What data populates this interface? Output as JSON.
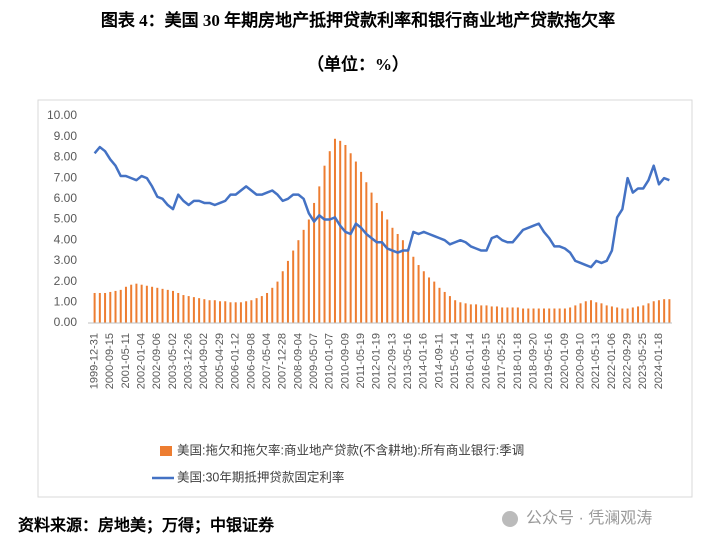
{
  "chart_data": {
    "type": "combo",
    "title": "图表 4：美国 30 年期房地产抵押贷款利率和银行商业地产贷款拖欠率",
    "subtitle": "（单位：%）",
    "categories": [
      "1999-12-31",
      null,
      null,
      "2000-09-15",
      null,
      null,
      "2001-05-11",
      null,
      null,
      "2002-01-04",
      null,
      null,
      "2002-09-06",
      null,
      null,
      "2003-05-02",
      null,
      null,
      "2003-12-26",
      null,
      null,
      "2004-09-02",
      null,
      null,
      "2005-04-29",
      null,
      null,
      "2006-01-12",
      null,
      null,
      "2006-09-08",
      null,
      null,
      "2007-05-04",
      null,
      null,
      "2007-12-28",
      null,
      null,
      "2008-09-04",
      null,
      null,
      "2009-05-07",
      null,
      null,
      "2010-01-07",
      null,
      null,
      "2010-09-09",
      null,
      null,
      "2011-05-19",
      null,
      null,
      "2012-01-19",
      null,
      null,
      "2012-09-13",
      null,
      null,
      "2013-05-16",
      null,
      null,
      "2014-01-16",
      null,
      null,
      "2014-09-11",
      null,
      null,
      "2015-05-14",
      null,
      null,
      "2016-01-14",
      null,
      null,
      "2016-09-15",
      null,
      null,
      "2017-05-25",
      null,
      null,
      "2018-01-18",
      null,
      null,
      "2018-09-20",
      null,
      null,
      "2019-05-16",
      null,
      null,
      "2020-01-09",
      null,
      null,
      "2020-09-10",
      null,
      null,
      "2021-05-13",
      null,
      null,
      "2022-01-06",
      null,
      null,
      "2022-09-29",
      null,
      null,
      "2023-05-25",
      null,
      null,
      "2024-01-18",
      null,
      null
    ],
    "series": [
      {
        "name": "美国:拖欠和拖欠率:商业地产贷款(不含耕地):所有商业银行:季调",
        "type": "bar",
        "color": "#ED7D31",
        "values": [
          1.45,
          1.45,
          1.45,
          1.5,
          1.55,
          1.6,
          1.75,
          1.85,
          1.9,
          1.85,
          1.8,
          1.75,
          1.7,
          1.65,
          1.6,
          1.55,
          1.45,
          1.35,
          1.3,
          1.25,
          1.2,
          1.15,
          1.1,
          1.1,
          1.05,
          1.05,
          1.0,
          1.0,
          1.0,
          1.05,
          1.1,
          1.2,
          1.3,
          1.45,
          1.7,
          2.0,
          2.5,
          3.0,
          3.5,
          4.0,
          4.5,
          5.0,
          5.8,
          6.6,
          7.6,
          8.3,
          8.9,
          8.8,
          8.6,
          8.2,
          7.8,
          7.3,
          6.8,
          6.3,
          5.8,
          5.4,
          5.0,
          4.6,
          4.3,
          4.0,
          3.6,
          3.2,
          2.8,
          2.5,
          2.2,
          2.0,
          1.7,
          1.5,
          1.3,
          1.1,
          1.0,
          0.95,
          0.9,
          0.9,
          0.85,
          0.85,
          0.8,
          0.8,
          0.75,
          0.75,
          0.75,
          0.75,
          0.7,
          0.7,
          0.7,
          0.7,
          0.7,
          0.7,
          0.7,
          0.7,
          0.7,
          0.75,
          0.85,
          0.95,
          1.05,
          1.1,
          1.0,
          0.95,
          0.85,
          0.8,
          0.75,
          0.7,
          0.7,
          0.75,
          0.8,
          0.85,
          0.95,
          1.05,
          1.1,
          1.15,
          1.15
        ]
      },
      {
        "name": "美国:30年期抵押贷款固定利率",
        "type": "line",
        "color": "#4472C4",
        "values": [
          8.2,
          8.5,
          8.3,
          7.9,
          7.6,
          7.1,
          7.1,
          7.0,
          6.9,
          7.1,
          7.0,
          6.6,
          6.1,
          6.0,
          5.7,
          5.5,
          6.2,
          5.9,
          5.7,
          5.9,
          5.9,
          5.8,
          5.8,
          5.7,
          5.8,
          5.9,
          6.2,
          6.2,
          6.4,
          6.6,
          6.4,
          6.2,
          6.2,
          6.3,
          6.4,
          6.2,
          5.9,
          6.0,
          6.2,
          6.2,
          6.0,
          5.3,
          4.9,
          5.2,
          5.0,
          5.0,
          5.1,
          4.7,
          4.4,
          4.3,
          4.8,
          4.6,
          4.3,
          4.1,
          3.9,
          3.9,
          3.6,
          3.5,
          3.4,
          3.5,
          3.5,
          4.4,
          4.3,
          4.4,
          4.3,
          4.2,
          4.1,
          4.0,
          3.8,
          3.9,
          4.0,
          3.9,
          3.7,
          3.6,
          3.5,
          3.5,
          4.1,
          4.2,
          4.0,
          3.9,
          3.9,
          4.2,
          4.5,
          4.6,
          4.7,
          4.8,
          4.4,
          4.1,
          3.7,
          3.7,
          3.6,
          3.4,
          3.0,
          2.9,
          2.8,
          2.7,
          3.0,
          2.9,
          3.0,
          3.5,
          5.1,
          5.5,
          7.0,
          6.3,
          6.5,
          6.5,
          6.9,
          7.6,
          6.7,
          7.0,
          6.9
        ]
      }
    ],
    "ylim": [
      0,
      10
    ],
    "yticks": [
      {
        "value": 0,
        "label": "0.00"
      },
      {
        "value": 1,
        "label": "1.00"
      },
      {
        "value": 2,
        "label": "2.00"
      },
      {
        "value": 3,
        "label": "3.00"
      },
      {
        "value": 4,
        "label": "4.00"
      },
      {
        "value": 5,
        "label": "5.00"
      },
      {
        "value": 6,
        "label": "6.00"
      },
      {
        "value": 7,
        "label": "7.00"
      },
      {
        "value": 8,
        "label": "8.00"
      },
      {
        "value": 9,
        "label": "9.00"
      },
      {
        "value": 10,
        "label": "10.00"
      }
    ],
    "grid": false
  },
  "source": "资料来源：房地美；万得；中银证券",
  "watermark": "公众号 · 凭澜观涛"
}
